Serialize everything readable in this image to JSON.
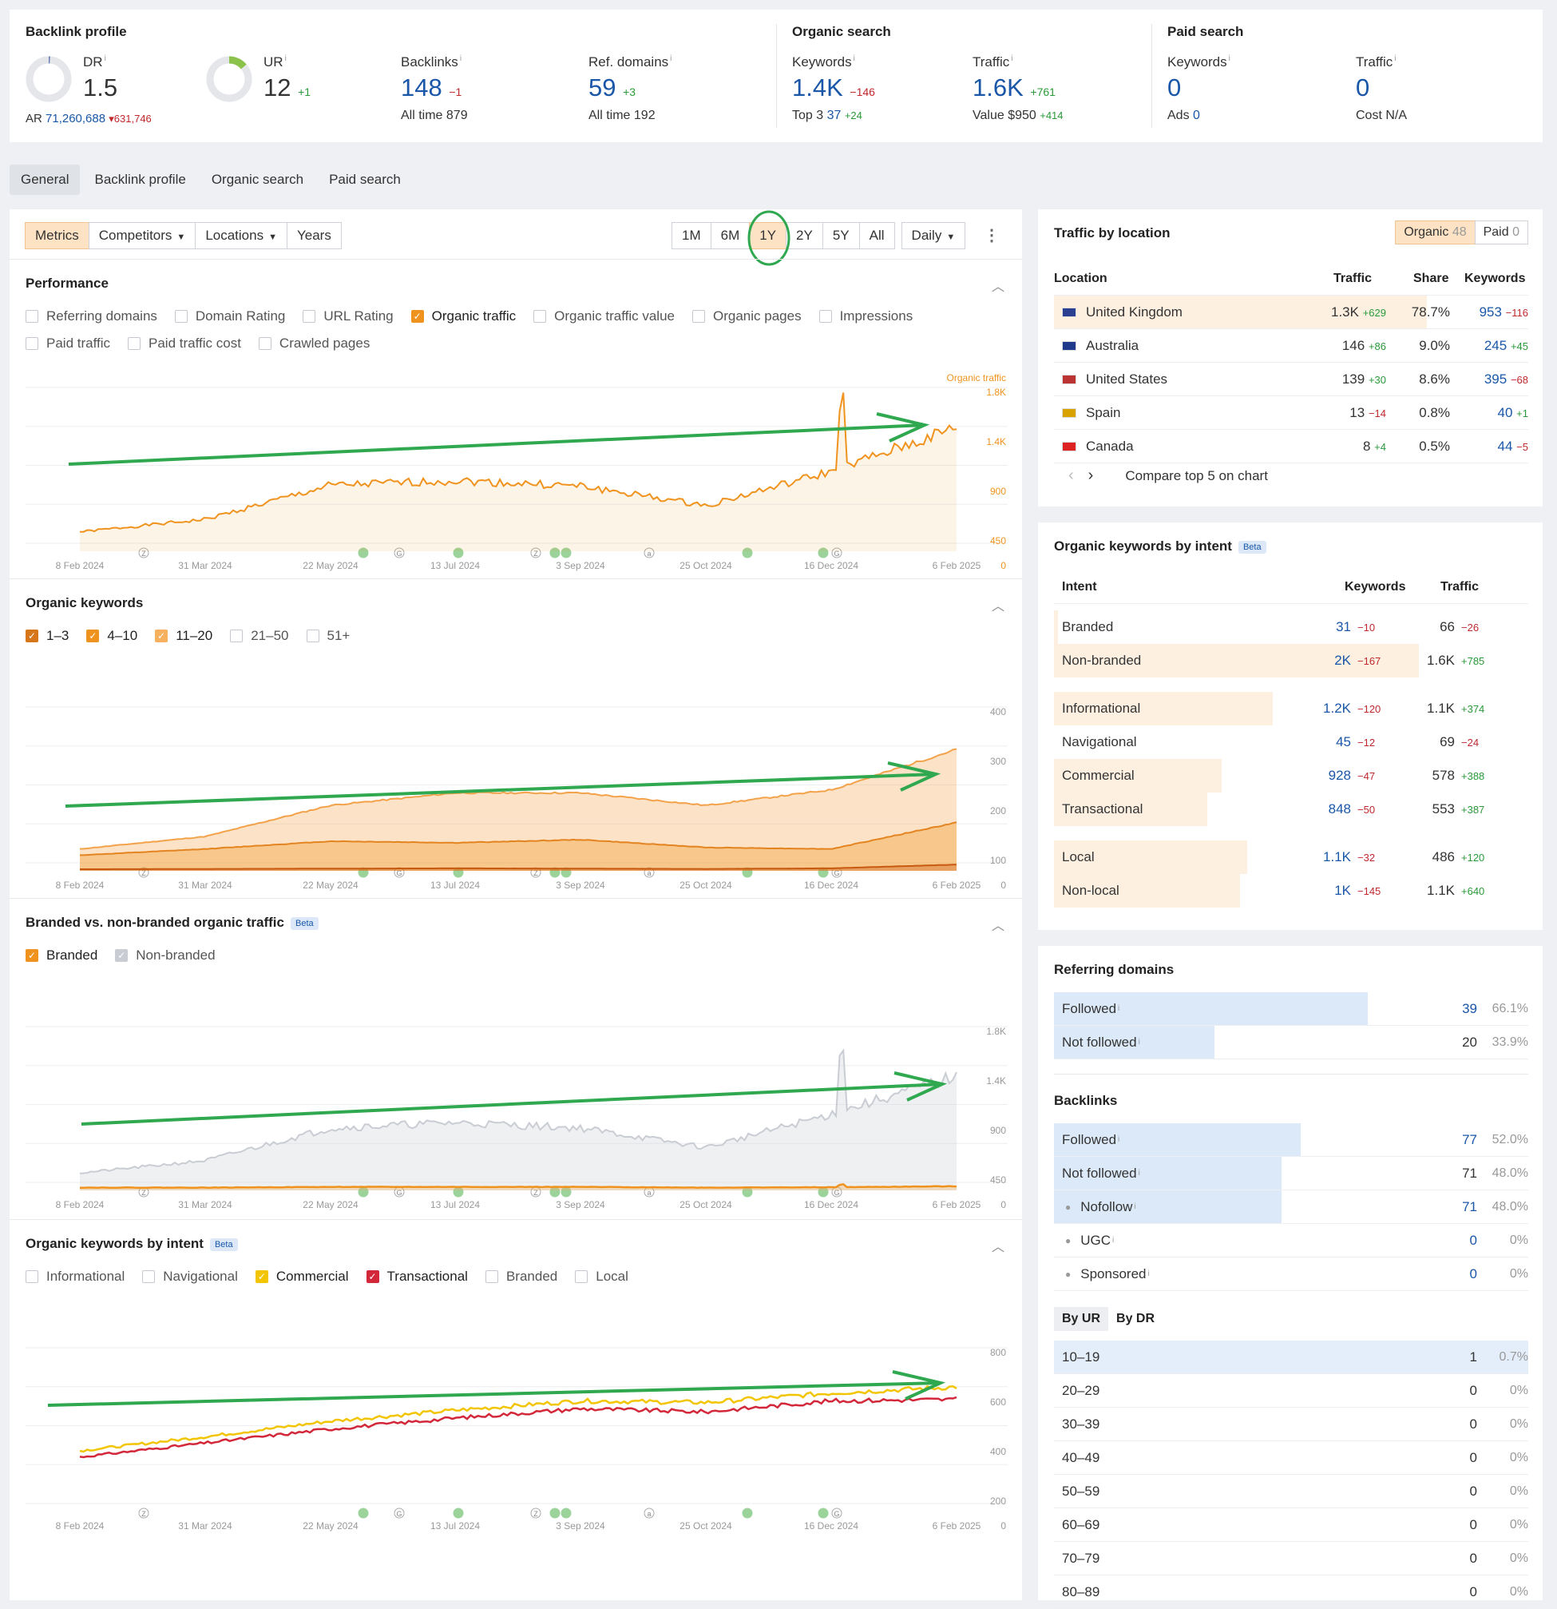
{
  "summary": {
    "backlink_profile": {
      "title": "Backlink profile",
      "dr_label": "DR",
      "dr_value": "1.5",
      "ar_label": "AR",
      "ar_value": "71,260,688",
      "ar_delta": "▾631,746",
      "ur_label": "UR",
      "ur_value": "12",
      "ur_delta": "+1",
      "backlinks_label": "Backlinks",
      "backlinks_value": "148",
      "backlinks_delta": "−1",
      "backlinks_alltime_label": "All time",
      "backlinks_alltime": "879",
      "refdomains_label": "Ref. domains",
      "refdomains_value": "59",
      "refdomains_delta": "+3",
      "refdomains_alltime_label": "All time",
      "refdomains_alltime": "192"
    },
    "organic": {
      "title": "Organic search",
      "kw_label": "Keywords",
      "kw_value": "1.4K",
      "kw_delta": "−146",
      "top3_label": "Top 3",
      "top3_value": "37",
      "top3_delta": "+24",
      "tr_label": "Traffic",
      "tr_value": "1.6K",
      "tr_delta": "+761",
      "value_label": "Value",
      "value_value": "$950",
      "value_delta": "+414"
    },
    "paid": {
      "title": "Paid search",
      "kw_label": "Keywords",
      "kw_value": "0",
      "ads_label": "Ads",
      "ads_value": "0",
      "tr_label": "Traffic",
      "tr_value": "0",
      "cost_label": "Cost",
      "cost_value": "N/A"
    }
  },
  "tabs": [
    "General",
    "Backlink profile",
    "Organic search",
    "Paid search"
  ],
  "toolbar": {
    "left": [
      "Metrics",
      "Competitors",
      "Locations",
      "Years"
    ],
    "ranges": [
      "1M",
      "6M",
      "1Y",
      "2Y",
      "5Y",
      "All"
    ],
    "interval": "Daily"
  },
  "performance": {
    "title": "Performance",
    "checks": [
      "Referring domains",
      "Domain Rating",
      "URL Rating",
      "Organic traffic",
      "Organic traffic value",
      "Organic pages",
      "Impressions",
      "Paid traffic",
      "Paid traffic cost",
      "Crawled pages"
    ],
    "series_label": "Organic traffic"
  },
  "organic_keywords": {
    "title": "Organic keywords",
    "checks": [
      "1–3",
      "4–10",
      "11–20",
      "21–50",
      "51+"
    ]
  },
  "branded": {
    "title": "Branded vs. non-branded organic traffic",
    "beta": "Beta",
    "checks": [
      "Branded",
      "Non-branded"
    ]
  },
  "kw_intent_chart": {
    "title": "Organic keywords by intent",
    "beta": "Beta",
    "checks": [
      "Informational",
      "Navigational",
      "Commercial",
      "Transactional",
      "Branded",
      "Local"
    ]
  },
  "chart_data": [
    {
      "type": "area",
      "name": "Performance",
      "x": [
        "8 Feb 2024",
        "31 Mar 2024",
        "22 May 2024",
        "13 Jul 2024",
        "3 Sep 2024",
        "25 Oct 2024",
        "16 Dec 2024",
        "6 Feb 2025"
      ],
      "series": [
        {
          "name": "Organic traffic",
          "values": [
            280,
            460,
            950,
            1020,
            940,
            660,
            1150,
            1780
          ]
        }
      ],
      "yticks": [
        "1.8K",
        "1.4K",
        "900",
        "450",
        "0"
      ]
    },
    {
      "type": "area",
      "name": "Organic keywords",
      "x": [
        "8 Feb 2024",
        "31 Mar 2024",
        "22 May 2024",
        "13 Jul 2024",
        "3 Sep 2024",
        "25 Oct 2024",
        "16 Dec 2024",
        "6 Feb 2025"
      ],
      "series": [
        {
          "name": "1–3",
          "values": [
            5,
            6,
            7,
            8,
            7,
            6,
            8,
            20
          ]
        },
        {
          "name": "4–10",
          "values": [
            50,
            70,
            95,
            90,
            100,
            75,
            70,
            155
          ]
        },
        {
          "name": "11–20",
          "values": [
            70,
            110,
            210,
            250,
            250,
            210,
            260,
            390
          ]
        }
      ],
      "yticks": [
        "400",
        "300",
        "200",
        "100",
        "0"
      ]
    },
    {
      "type": "area",
      "name": "Branded vs. non-branded organic traffic",
      "x": [
        "8 Feb 2024",
        "31 Mar 2024",
        "22 May 2024",
        "13 Jul 2024",
        "3 Sep 2024",
        "25 Oct 2024",
        "16 Dec 2024",
        "6 Feb 2025"
      ],
      "series": [
        {
          "name": "Branded",
          "values": [
            40,
            40,
            50,
            50,
            50,
            40,
            45,
            60
          ]
        },
        {
          "name": "Non-branded",
          "values": [
            250,
            430,
            900,
            980,
            900,
            620,
            1100,
            1650
          ]
        }
      ],
      "yticks": [
        "1.8K",
        "1.4K",
        "900",
        "450",
        "0"
      ]
    },
    {
      "type": "line",
      "name": "Organic keywords by intent",
      "x": [
        "8 Feb 2024",
        "31 Mar 2024",
        "22 May 2024",
        "13 Jul 2024",
        "3 Sep 2024",
        "25 Oct 2024",
        "16 Dec 2024",
        "6 Feb 2025"
      ],
      "series": [
        {
          "name": "Commercial",
          "values": [
            390,
            480,
            580,
            650,
            710,
            700,
            760,
            800
          ]
        },
        {
          "name": "Transactional",
          "values": [
            350,
            440,
            530,
            600,
            660,
            640,
            710,
            720
          ]
        }
      ],
      "yticks": [
        "800",
        "600",
        "400",
        "200",
        "0"
      ]
    }
  ],
  "traffic_by_location": {
    "title": "Traffic by location",
    "organic_label": "Organic",
    "organic_count": "48",
    "paid_label": "Paid",
    "paid_count": "0",
    "headers": [
      "Location",
      "Traffic",
      "Share",
      "Keywords"
    ],
    "rows": [
      {
        "name": "United Kingdom",
        "traffic": "1.3K",
        "tdelta": "+629",
        "share": "78.7%",
        "kw": "953",
        "kdelta": "−116",
        "share_frac": 0.787
      },
      {
        "name": "Australia",
        "traffic": "146",
        "tdelta": "+86",
        "share": "9.0%",
        "kw": "245",
        "kdelta": "+45",
        "share_frac": 0.09
      },
      {
        "name": "United States",
        "traffic": "139",
        "tdelta": "+30",
        "share": "8.6%",
        "kw": "395",
        "kdelta": "−68",
        "share_frac": 0.086
      },
      {
        "name": "Spain",
        "traffic": "13",
        "tdelta": "−14",
        "share": "0.8%",
        "kw": "40",
        "kdelta": "+1",
        "share_frac": 0.008
      },
      {
        "name": "Canada",
        "traffic": "8",
        "tdelta": "+4",
        "share": "0.5%",
        "kw": "44",
        "kdelta": "−5",
        "share_frac": 0.005
      }
    ],
    "compare": "Compare top 5 on chart"
  },
  "intent_table": {
    "title": "Organic keywords by intent",
    "beta": "Beta",
    "headers": [
      "Intent",
      "Keywords",
      "Traffic"
    ],
    "rows": [
      {
        "name": "Branded",
        "kw": "31",
        "kd": "−10",
        "tr": "66",
        "td": "−26",
        "frac": 0.01
      },
      {
        "name": "Non-branded",
        "kw": "2K",
        "kd": "−167",
        "tr": "1.6K",
        "td": "+785",
        "frac": 1.0
      },
      {
        "name": "Informational",
        "kw": "1.2K",
        "kd": "−120",
        "tr": "1.1K",
        "td": "+374",
        "frac": 0.6
      },
      {
        "name": "Navigational",
        "kw": "45",
        "kd": "−12",
        "tr": "69",
        "td": "−24",
        "frac": 0.0
      },
      {
        "name": "Commercial",
        "kw": "928",
        "kd": "−47",
        "tr": "578",
        "td": "+388",
        "frac": 0.46
      },
      {
        "name": "Transactional",
        "kw": "848",
        "kd": "−50",
        "tr": "553",
        "td": "+387",
        "frac": 0.42
      },
      {
        "name": "Local",
        "kw": "1.1K",
        "kd": "−32",
        "tr": "486",
        "td": "+120",
        "frac": 0.53
      },
      {
        "name": "Non-local",
        "kw": "1K",
        "kd": "−145",
        "tr": "1.1K",
        "td": "+640",
        "frac": 0.51
      }
    ]
  },
  "referring_domains": {
    "title": "Referring domains",
    "rows": [
      {
        "name": "Followed",
        "count": "39",
        "pct": "66.1%",
        "frac": 0.661
      },
      {
        "name": "Not followed",
        "count": "20",
        "pct": "33.9%",
        "frac": 0.339
      }
    ]
  },
  "backlinks": {
    "title": "Backlinks",
    "rows": [
      {
        "name": "Followed",
        "count": "77",
        "pct": "52.0%",
        "frac": 0.52,
        "sub": false
      },
      {
        "name": "Not followed",
        "count": "71",
        "pct": "48.0%",
        "frac": 0.48,
        "sub": false
      },
      {
        "name": "Nofollow",
        "count": "71",
        "pct": "48.0%",
        "frac": 0.48,
        "sub": true
      },
      {
        "name": "UGC",
        "count": "0",
        "pct": "0%",
        "frac": 0,
        "sub": true
      },
      {
        "name": "Sponsored",
        "count": "0",
        "pct": "0%",
        "frac": 0,
        "sub": true
      }
    ],
    "toggle": [
      "By UR",
      "By DR"
    ],
    "ur_rows": [
      {
        "name": "10–19",
        "count": "1",
        "pct": "0.7%"
      },
      {
        "name": "20–29",
        "count": "0",
        "pct": "0%"
      },
      {
        "name": "30–39",
        "count": "0",
        "pct": "0%"
      },
      {
        "name": "40–49",
        "count": "0",
        "pct": "0%"
      },
      {
        "name": "50–59",
        "count": "0",
        "pct": "0%"
      },
      {
        "name": "60–69",
        "count": "0",
        "pct": "0%"
      },
      {
        "name": "70–79",
        "count": "0",
        "pct": "0%"
      },
      {
        "name": "80–89",
        "count": "0",
        "pct": "0%"
      }
    ]
  },
  "colors": {
    "accent": "#f0931e",
    "link": "#1a57a8",
    "arrow": "#2fa84f",
    "red": "#d3283a",
    "yellow": "#f2c500"
  }
}
